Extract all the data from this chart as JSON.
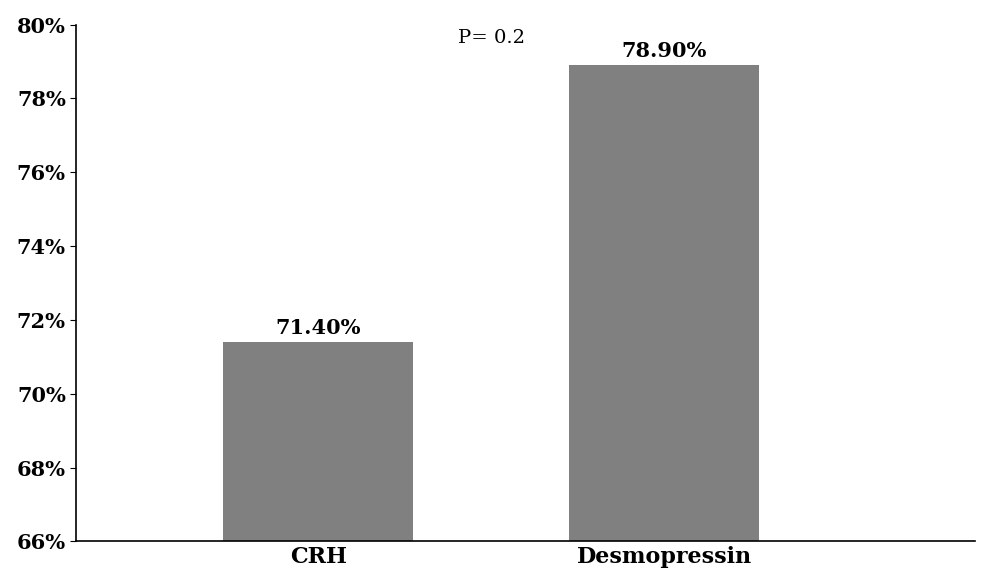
{
  "categories": [
    "CRH",
    "Desmopressin"
  ],
  "values": [
    71.4,
    78.9
  ],
  "bar_color": "#808080",
  "bar_labels": [
    "71.40%",
    "78.90%"
  ],
  "p_value_text": "P= 0.2",
  "p_value_x": 1.5,
  "p_value_y": 79.4,
  "ylim": [
    66,
    80
  ],
  "yticks": [
    66,
    68,
    70,
    72,
    74,
    76,
    78,
    80
  ],
  "bar_label_fontsize": 15,
  "tick_label_fontsize": 15,
  "x_label_fontsize": 16,
  "p_value_fontsize": 14,
  "bar_width": 0.55,
  "x_positions": [
    1,
    2
  ],
  "xlim": [
    0.3,
    2.9
  ],
  "background_color": "#ffffff",
  "edge_color": "none",
  "spine_color": "#000000"
}
